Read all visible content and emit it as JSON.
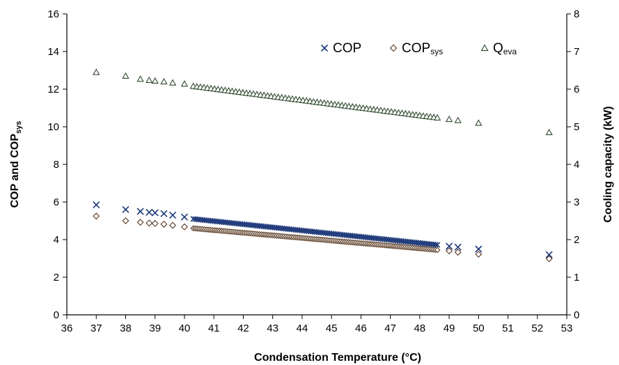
{
  "chart_data": {
    "type": "scatter",
    "xlabel": "Condensation Temperature (°C)",
    "ylabel_left": {
      "main": "COP and COP",
      "sub": "sys"
    },
    "ylabel_right": "Cooling capacity (kW)",
    "xlim": [
      36,
      53
    ],
    "ylim_left": [
      0,
      16
    ],
    "ylim_right": [
      0,
      8
    ],
    "x_ticks": [
      "36",
      "37",
      "38",
      "39",
      "40",
      "41",
      "42",
      "43",
      "44",
      "45",
      "46",
      "47",
      "48",
      "49",
      "50",
      "51",
      "52",
      "53"
    ],
    "y_ticks_left": [
      "0",
      "2",
      "4",
      "6",
      "8",
      "10",
      "12",
      "14",
      "16"
    ],
    "y_ticks_right": [
      "0",
      "1",
      "2",
      "3",
      "4",
      "5",
      "6",
      "7",
      "8"
    ],
    "grid": false,
    "legend_position": "top-right",
    "legend": [
      {
        "main": "COP",
        "sub": "",
        "marker": "x"
      },
      {
        "main": "COP",
        "sub": "sys",
        "marker": "diamond"
      },
      {
        "main": "Q",
        "sub": "eva",
        "marker": "triangle"
      }
    ],
    "colors": {
      "cop": "#1f3a7a",
      "cop_sys": "#5a3a22",
      "qeva": "#2f4a2f"
    },
    "series": [
      {
        "key": "cop",
        "axis": "left",
        "sparse_points": [
          [
            37,
            5.85
          ],
          [
            38,
            5.6
          ],
          [
            38.5,
            5.5
          ],
          [
            38.8,
            5.45
          ],
          [
            39,
            5.43
          ],
          [
            39.3,
            5.38
          ],
          [
            39.6,
            5.3
          ],
          [
            40,
            5.2
          ],
          [
            49,
            3.65
          ],
          [
            49.3,
            3.6
          ],
          [
            50,
            3.5
          ],
          [
            52.4,
            3.2
          ]
        ],
        "dense_range": [
          40.3,
          48.6
        ],
        "dense_y": [
          5.1,
          3.72
        ]
      },
      {
        "key": "cop_sys",
        "axis": "left",
        "sparse_points": [
          [
            37,
            5.25
          ],
          [
            38,
            5.0
          ],
          [
            38.5,
            4.92
          ],
          [
            38.8,
            4.88
          ],
          [
            39,
            4.86
          ],
          [
            39.3,
            4.82
          ],
          [
            39.6,
            4.76
          ],
          [
            40,
            4.68
          ],
          [
            49,
            3.4
          ],
          [
            49.3,
            3.33
          ],
          [
            50,
            3.22
          ],
          [
            52.4,
            2.98
          ]
        ],
        "dense_range": [
          40.3,
          48.6
        ],
        "dense_y": [
          4.6,
          3.45
        ]
      },
      {
        "key": "qeva",
        "axis": "right",
        "sparse_points": [
          [
            37,
            6.45
          ],
          [
            38,
            6.35
          ],
          [
            38.5,
            6.27
          ],
          [
            38.8,
            6.24
          ],
          [
            39,
            6.22
          ],
          [
            39.3,
            6.2
          ],
          [
            39.6,
            6.17
          ],
          [
            40,
            6.14
          ],
          [
            49,
            5.2
          ],
          [
            49.3,
            5.17
          ],
          [
            50,
            5.1
          ],
          [
            52.4,
            4.85
          ]
        ],
        "dense_range": [
          40.3,
          48.6
        ],
        "dense_y": [
          6.08,
          5.24
        ]
      }
    ]
  }
}
